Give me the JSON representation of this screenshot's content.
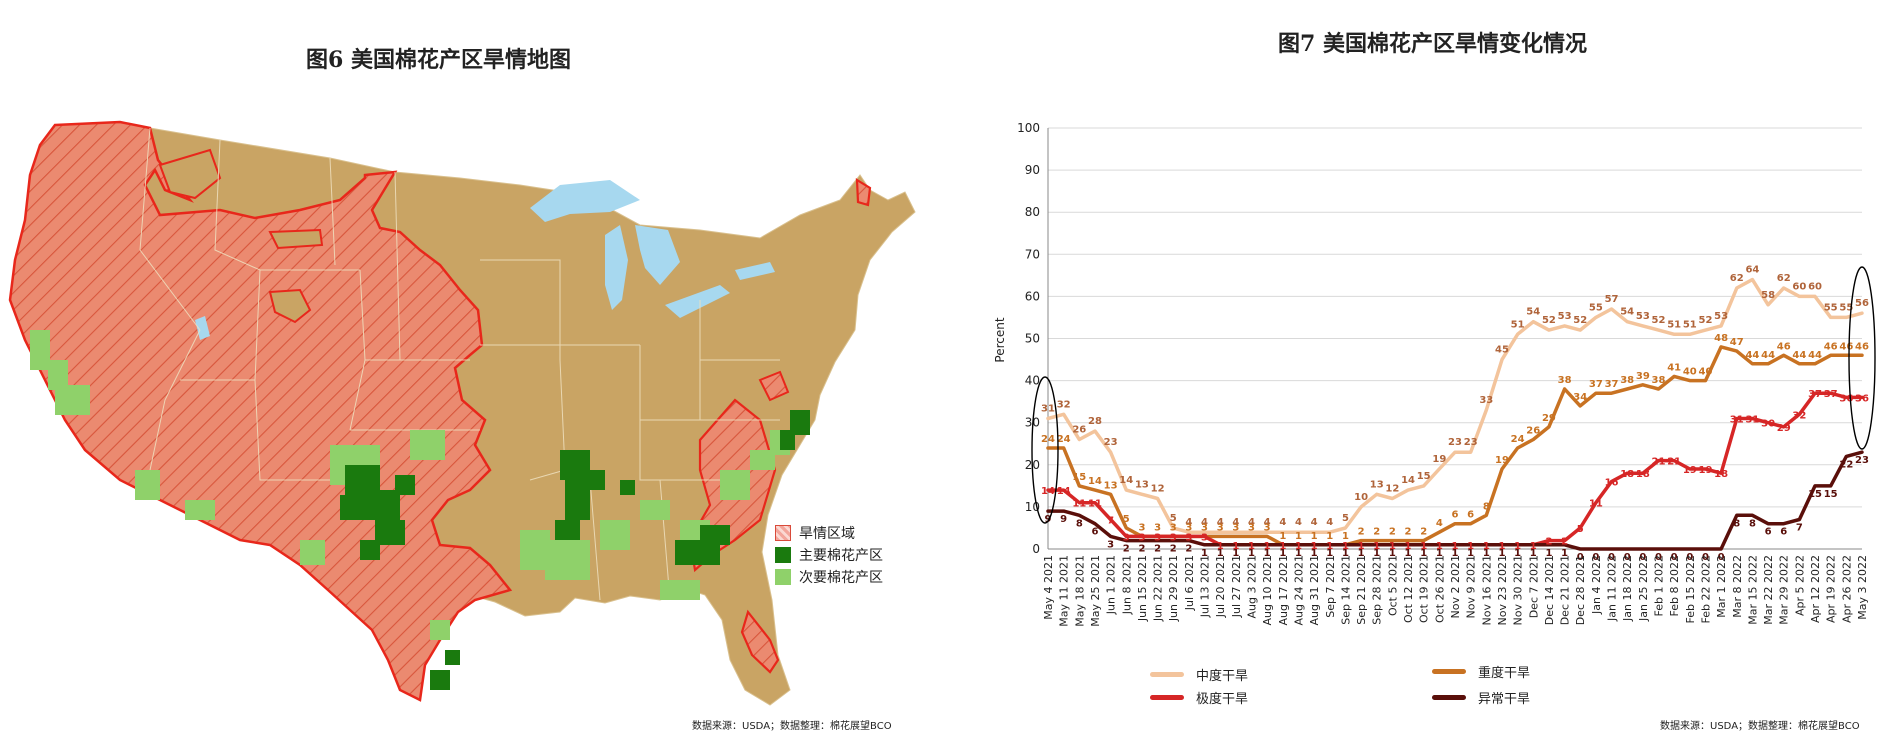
{
  "left": {
    "title": "图6 美国棉花产区旱情地图",
    "legend": [
      {
        "label": "旱情区域",
        "color": "#f08a78"
      },
      {
        "label": "主要棉花产区",
        "color": "#1a7a0e"
      },
      {
        "label": "次要棉花产区",
        "color": "#8fd16a"
      }
    ],
    "source": "数据来源：USDA；数据整理：棉花展望BCO"
  },
  "right": {
    "title": "图7 美国棉花产区旱情变化情况",
    "source": "数据来源：USDA；数据整理：棉花展望BCO"
  },
  "colors": {
    "land": "#c9a464",
    "drought": "#e9866c",
    "water": "#a7d8ef",
    "main_cotton": "#1a7a0e",
    "second_cotton": "#8fd16a"
  },
  "chart_data": {
    "type": "line",
    "title": "图7 美国棉花产区旱情变化情况",
    "ylabel": "Percent",
    "xlabel": "",
    "ylim": [
      0,
      100
    ],
    "yticks": [
      0,
      10,
      20,
      30,
      40,
      50,
      60,
      70,
      80,
      90,
      100
    ],
    "grid": true,
    "legend_position": "bottom",
    "x": [
      "May 4 2021",
      "May 11 2021",
      "May 18 2021",
      "May 25 2021",
      "Jun 1 2021",
      "Jun 8 2021",
      "Jun 15 2021",
      "Jun 22 2021",
      "Jun 29 2021",
      "Jul 6 2021",
      "Jul 13 2021",
      "Jul 20 2021",
      "Jul 27 2021",
      "Aug 3 2021",
      "Aug 10 2021",
      "Aug 17 2021",
      "Aug 24 2021",
      "Aug 31 2021",
      "Sep 7 2021",
      "Sep 14 2021",
      "Sep 21 2021",
      "Sep 28 2021",
      "Oct 5 2021",
      "Oct 12 2021",
      "Oct 19 2021",
      "Oct 26 2021",
      "Nov 2 2021",
      "Nov 9 2021",
      "Nov 16 2021",
      "Nov 23 2021",
      "Nov 30 2021",
      "Dec 7 2021",
      "Dec 14 2021",
      "Dec 21 2021",
      "Dec 28 2021",
      "Jan 4 2022",
      "Jan 11 2022",
      "Jan 18 2022",
      "Jan 25 2022",
      "Feb 1 2022",
      "Feb 8 2022",
      "Feb 15 2022",
      "Feb 22 2022",
      "Mar 1 2022",
      "Mar 8 2022",
      "Mar 15 2022",
      "Mar 22 2022",
      "Mar 29 2022",
      "Apr 5 2022",
      "Apr 12 2022",
      "Apr 19 2022",
      "Apr 26 2022",
      "May 3 2022"
    ],
    "x_tick_labels": [
      "May 4 2021",
      "May 11 2021",
      "May 18 2021",
      "May 25 2021",
      "Jun 1 2021",
      "Jun 8 2021",
      "Jun 15 2021",
      "Jun 22 2021",
      "Jun 29 2021",
      "Jul 6 2021",
      "Jul 13 2021",
      "Jul 20 2021",
      "Jul 27 2021",
      "Aug 3 2021",
      "Aug 10 2021",
      "Aug 17 2021",
      "Aug 24 2021",
      "Aug 31 2021",
      "Sep 7 2021",
      "Sep 14 2021",
      "Sep 21 2021",
      "Sep 28 2021",
      "Oct 5 2021",
      "Oct 12 2021",
      "Oct 19 2021",
      "Oct 26 2021",
      "Nov 2 2021",
      "Nov 9 2021",
      "Nov 16 2021",
      "Nov 23 2021",
      "Nov 30 2021",
      "Dec 7 2021",
      "Dec 14 2021",
      "Dec 21 2021",
      "Dec 28 2021",
      "Jan 4 2022",
      "Jan 11 2022",
      "Jan 18 2022",
      "Jan 25 2022",
      "Feb 1 2022",
      "Feb 8 2022",
      "Feb 15 2022",
      "Feb 22 2022",
      "Mar 1 2022",
      "Mar 8 2022",
      "Mar 15 2022",
      "Mar 22 2022",
      "Mar 29 2022",
      "Apr 5 2022",
      "Apr 12 2022",
      "Apr 19 2022",
      "Apr 26 2022",
      "May 3 2022"
    ],
    "series": [
      {
        "name": "中度干旱",
        "color": "#f3c49c",
        "values": [
          31,
          32,
          26,
          28,
          23,
          14,
          13,
          12,
          5,
          4,
          4,
          4,
          4,
          4,
          4,
          4,
          4,
          4,
          4,
          5,
          10,
          13,
          12,
          14,
          15,
          19,
          23,
          23,
          33,
          45,
          51,
          54,
          52,
          53,
          52,
          55,
          57,
          54,
          53,
          52,
          51,
          51,
          52,
          53,
          62,
          64,
          58,
          62,
          60,
          60,
          55,
          55,
          56
        ]
      },
      {
        "name": "重度干旱",
        "color": "#c87222",
        "values": [
          24,
          24,
          15,
          14,
          13,
          5,
          3,
          3,
          3,
          3,
          3,
          3,
          3,
          3,
          3,
          1,
          1,
          1,
          1,
          1,
          2,
          2,
          2,
          2,
          2,
          4,
          6,
          6,
          8,
          19,
          24,
          26,
          29,
          38,
          34,
          37,
          37,
          38,
          39,
          38,
          41,
          40,
          40,
          48,
          47,
          44,
          44,
          46,
          44,
          44,
          46,
          46,
          46
        ]
      },
      {
        "name": "极度干旱",
        "color": "#d62626",
        "values": [
          14,
          14,
          11,
          11,
          7,
          3,
          3,
          3,
          3,
          3,
          3,
          1,
          1,
          1,
          1,
          1,
          1,
          1,
          1,
          1,
          1,
          1,
          1,
          1,
          1,
          1,
          1,
          1,
          1,
          1,
          1,
          1,
          2,
          2,
          5,
          11,
          16,
          18,
          18,
          21,
          21,
          19,
          19,
          18,
          31,
          31,
          30,
          29,
          32,
          37,
          37,
          36,
          36
        ]
      },
      {
        "name": "异常干旱",
        "color": "#5a0f0a",
        "values": [
          9,
          9,
          8,
          6,
          3,
          2,
          2,
          2,
          2,
          2,
          1,
          1,
          1,
          1,
          1,
          1,
          1,
          1,
          1,
          1,
          1,
          1,
          1,
          1,
          1,
          1,
          1,
          1,
          1,
          1,
          1,
          1,
          1,
          1,
          0,
          0,
          0,
          0,
          0,
          0,
          0,
          0,
          0,
          0,
          8,
          8,
          6,
          6,
          7,
          15,
          15,
          22,
          23
        ]
      }
    ]
  }
}
